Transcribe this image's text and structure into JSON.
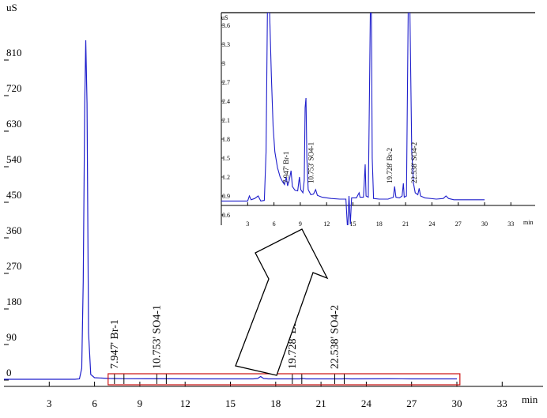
{
  "chart_data": [
    {
      "type": "line",
      "role": "main",
      "ylabel": "uS",
      "xlabel": "min",
      "xlim": [
        0,
        30
      ],
      "ylim": [
        -10,
        900
      ],
      "x_ticks": [
        3,
        6,
        9,
        12,
        15,
        18,
        21,
        24,
        27,
        30,
        33
      ],
      "y_ticks": [
        0,
        90,
        180,
        270,
        360,
        450,
        540,
        630,
        720,
        810
      ],
      "series": [
        {
          "color": "#1f1fcc",
          "points": [
            [
              0,
              2
            ],
            [
              4.7,
              2
            ],
            [
              5.0,
              3
            ],
            [
              5.15,
              30
            ],
            [
              5.25,
              250
            ],
            [
              5.35,
              700
            ],
            [
              5.42,
              860
            ],
            [
              5.5,
              700
            ],
            [
              5.6,
              120
            ],
            [
              5.75,
              14
            ],
            [
              6.0,
              6
            ],
            [
              7.0,
              4
            ],
            [
              8.0,
              3.5
            ],
            [
              9.5,
              3.2
            ],
            [
              11.0,
              3.2
            ],
            [
              13.0,
              3
            ],
            [
              16.5,
              3
            ],
            [
              16.8,
              4
            ],
            [
              17.0,
              9
            ],
            [
              17.2,
              4
            ],
            [
              17.5,
              3
            ],
            [
              19.6,
              3
            ],
            [
              19.75,
              4
            ],
            [
              20.0,
              3
            ],
            [
              22.4,
              3
            ],
            [
              22.6,
              3.5
            ],
            [
              23.0,
              3
            ],
            [
              25.5,
              3.2
            ],
            [
              27.0,
              3
            ],
            [
              30,
              3
            ]
          ]
        }
      ],
      "annotations": [
        {
          "time": 7.947,
          "label": "7.947'  Br-1"
        },
        {
          "time": 10.753,
          "label": "10.753'  SO4-1"
        },
        {
          "time": 19.728,
          "label": "19.728'  Br-2"
        },
        {
          "time": 22.538,
          "label": "22.538'  SO4-2"
        }
      ],
      "highlight": {
        "x_range": [
          6.9,
          30.2
        ],
        "color": "#cc1111"
      }
    },
    {
      "type": "line",
      "role": "inset",
      "ylabel": "uS",
      "xlabel": "min",
      "xlim": [
        0,
        30
      ],
      "ylim": [
        0.5,
        3.7
      ],
      "x_ticks": [
        3,
        6,
        9,
        12,
        15,
        18,
        21,
        24,
        27,
        30,
        33
      ],
      "y_ticks": [
        0.6,
        0.9,
        1.2,
        1.5,
        1.8,
        2.1,
        2.4,
        2.7,
        3,
        3.3,
        3.6
      ],
      "series": [
        {
          "color": "#1f1fcc",
          "points": [
            [
              0,
              0.82
            ],
            [
              2.0,
              0.82
            ],
            [
              3.0,
              0.82
            ],
            [
              3.2,
              0.9
            ],
            [
              3.4,
              0.84
            ],
            [
              3.8,
              0.86
            ],
            [
              4.2,
              0.9
            ],
            [
              4.5,
              0.82
            ],
            [
              4.9,
              0.83
            ],
            [
              5.1,
              1.6
            ],
            [
              5.25,
              3.8
            ],
            [
              5.5,
              3.8
            ],
            [
              5.7,
              2.8
            ],
            [
              5.9,
              2.0
            ],
            [
              6.1,
              1.6
            ],
            [
              6.4,
              1.35
            ],
            [
              6.7,
              1.2
            ],
            [
              7.0,
              1.12
            ],
            [
              7.2,
              1.08
            ],
            [
              7.4,
              1.2
            ],
            [
              7.55,
              1.06
            ],
            [
              7.75,
              1.15
            ],
            [
              7.95,
              1.3
            ],
            [
              8.1,
              1.05
            ],
            [
              8.4,
              0.99
            ],
            [
              8.7,
              0.98
            ],
            [
              8.9,
              1.2
            ],
            [
              9.05,
              1.0
            ],
            [
              9.3,
              0.95
            ],
            [
              9.45,
              1.15
            ],
            [
              9.55,
              2.3
            ],
            [
              9.65,
              2.45
            ],
            [
              9.75,
              1.5
            ],
            [
              9.9,
              1.0
            ],
            [
              10.2,
              0.92
            ],
            [
              10.5,
              0.93
            ],
            [
              10.75,
              1.0
            ],
            [
              10.95,
              0.91
            ],
            [
              11.5,
              0.88
            ],
            [
              12.5,
              0.86
            ],
            [
              13.5,
              0.85
            ],
            [
              14.2,
              0.85
            ],
            [
              14.4,
              0.35
            ],
            [
              14.55,
              0.9
            ],
            [
              14.7,
              0.45
            ],
            [
              14.85,
              0.87
            ],
            [
              15.4,
              0.87
            ],
            [
              15.7,
              0.95
            ],
            [
              15.8,
              0.88
            ],
            [
              16.2,
              0.88
            ],
            [
              16.4,
              1.4
            ],
            [
              16.5,
              0.9
            ],
            [
              16.75,
              0.88
            ],
            [
              16.88,
              2.5
            ],
            [
              16.98,
              3.8
            ],
            [
              17.1,
              3.8
            ],
            [
              17.2,
              1.5
            ],
            [
              17.35,
              0.86
            ],
            [
              18.0,
              0.85
            ],
            [
              19.0,
              0.85
            ],
            [
              19.6,
              0.88
            ],
            [
              19.75,
              1.05
            ],
            [
              19.9,
              0.88
            ],
            [
              20.3,
              0.87
            ],
            [
              20.6,
              0.9
            ],
            [
              20.75,
              1.1
            ],
            [
              20.85,
              0.88
            ],
            [
              21.1,
              0.9
            ],
            [
              21.3,
              3.8
            ],
            [
              21.5,
              3.8
            ],
            [
              21.7,
              1.6
            ],
            [
              21.9,
              1.1
            ],
            [
              22.1,
              0.95
            ],
            [
              22.4,
              0.92
            ],
            [
              22.55,
              1.02
            ],
            [
              22.7,
              0.9
            ],
            [
              23.2,
              0.87
            ],
            [
              24.5,
              0.85
            ],
            [
              25.3,
              0.86
            ],
            [
              25.6,
              0.9
            ],
            [
              25.9,
              0.86
            ],
            [
              26.5,
              0.84
            ],
            [
              27.5,
              0.84
            ],
            [
              29.0,
              0.84
            ],
            [
              30,
              0.84
            ]
          ]
        }
      ],
      "annotations": [
        {
          "time": 7.947,
          "label": "7.947'  Br-1"
        },
        {
          "time": 10.753,
          "label": "10.753'  SO4-1"
        },
        {
          "time": 19.728,
          "label": "19.728'  Br-2"
        },
        {
          "time": 22.538,
          "label": "22.538'  SO4-2"
        }
      ]
    }
  ]
}
